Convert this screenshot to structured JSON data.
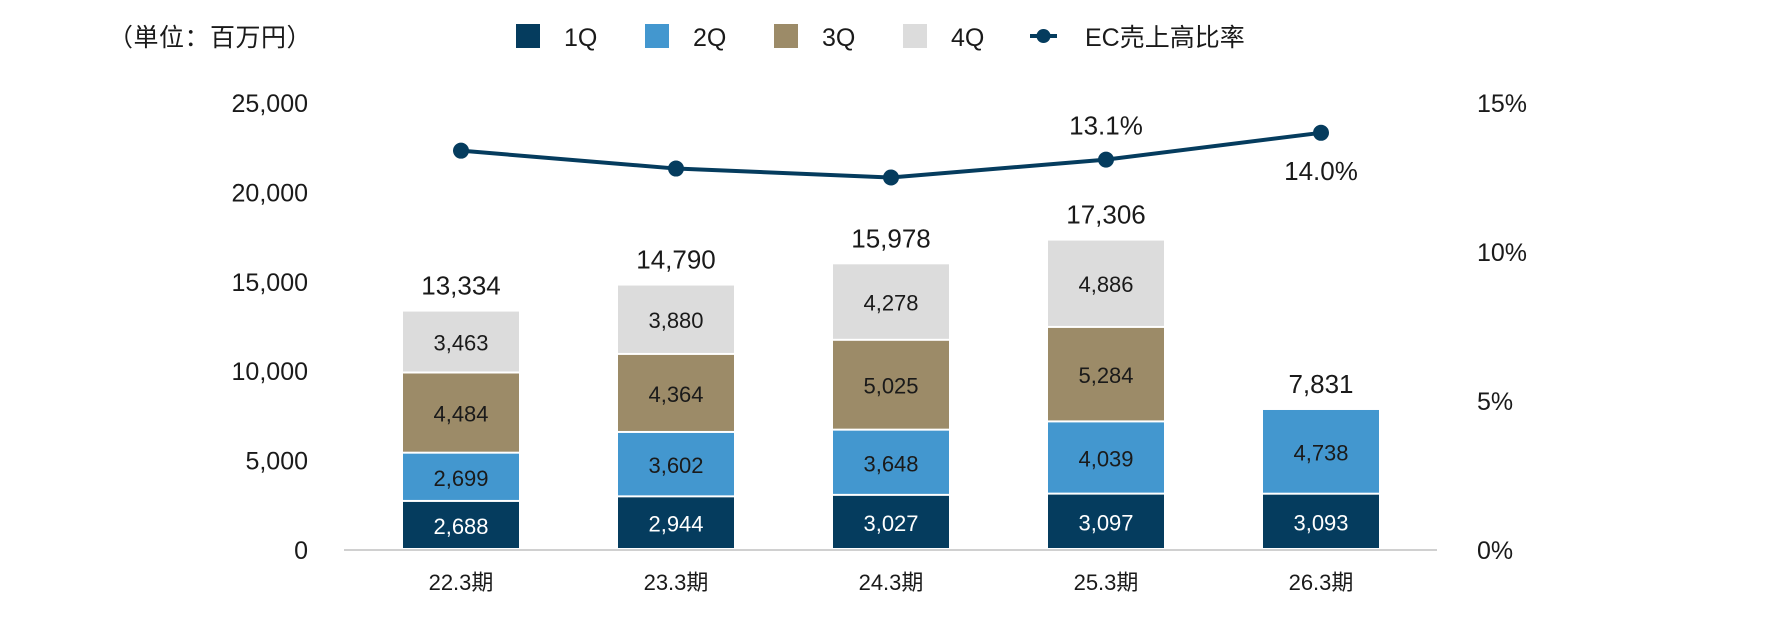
{
  "header": {
    "unit_label": "（単位：百万円）"
  },
  "legend": [
    {
      "label": "1Q",
      "color": "#053c5e",
      "type": "square"
    },
    {
      "label": "2Q",
      "color": "#4397cf",
      "type": "square"
    },
    {
      "label": "3Q",
      "color": "#9c8b68",
      "type": "square"
    },
    {
      "label": "4Q",
      "color": "#dcdcdc",
      "type": "square"
    },
    {
      "label": "EC売上高比率",
      "color": "#053c5e",
      "type": "line-marker"
    }
  ],
  "chart_data": {
    "type": "bar",
    "stacked": true,
    "title": "",
    "xlabel": "",
    "ylabel": "（単位：百万円）",
    "categories": [
      "22.3期",
      "23.3期",
      "24.3期",
      "25.3期",
      "26.3期"
    ],
    "series": [
      {
        "name": "1Q",
        "color": "#053c5e",
        "label_color": "#ffffff",
        "values": [
          2688,
          2944,
          3027,
          3097,
          3093
        ]
      },
      {
        "name": "2Q",
        "color": "#4397cf",
        "label_color": "#1a1a1a",
        "values": [
          2699,
          3602,
          3648,
          4039,
          4738
        ]
      },
      {
        "name": "3Q",
        "color": "#9c8b68",
        "label_color": "#1a1a1a",
        "values": [
          4484,
          4364,
          5025,
          5284,
          null
        ]
      },
      {
        "name": "4Q",
        "color": "#dcdcdc",
        "label_color": "#1a1a1a",
        "values": [
          3463,
          3880,
          4278,
          4886,
          null
        ]
      }
    ],
    "totals": [
      13334,
      14790,
      15978,
      17306,
      7831
    ],
    "totals_labels": [
      "13,334",
      "14,790",
      "15,978",
      "17,306",
      "7,831"
    ],
    "line_series": {
      "name": "EC売上高比率",
      "color": "#053c5e",
      "axis": "right",
      "values": [
        13.4,
        12.8,
        12.5,
        13.1,
        14.0
      ],
      "data_labels": [
        null,
        null,
        null,
        "13.1%",
        "14.0%"
      ]
    },
    "ylim": [
      0,
      25000
    ],
    "yticks": [
      0,
      5000,
      10000,
      15000,
      20000,
      25000
    ],
    "ytick_labels": [
      "0",
      "5,000",
      "10,000",
      "15,000",
      "20,000",
      "25,000"
    ],
    "y2lim": [
      0,
      15
    ],
    "y2ticks": [
      0,
      5,
      10,
      15
    ],
    "y2tick_labels": [
      "0%",
      "5%",
      "10%",
      "15%"
    ],
    "grid": false,
    "legend_position": "top"
  }
}
